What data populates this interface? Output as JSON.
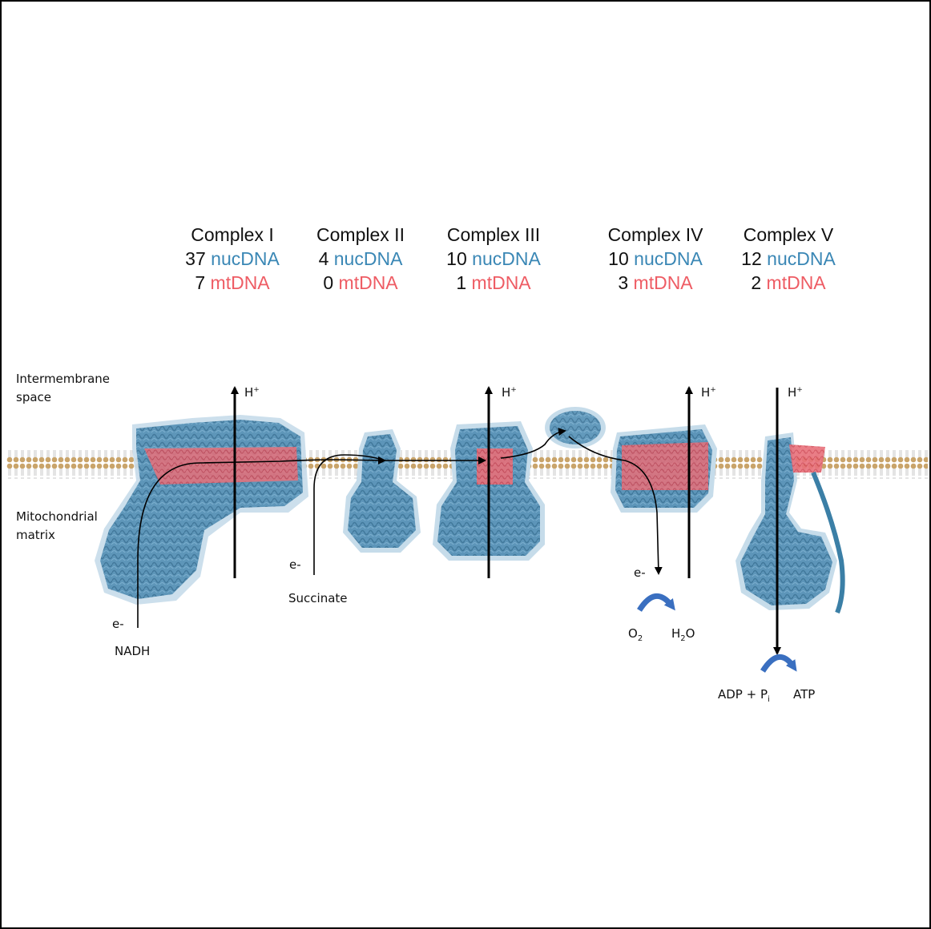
{
  "complexes": [
    {
      "name": "Complex I",
      "nuc_count": "37",
      "nuc_label": "nucDNA",
      "mt_count": "7",
      "mt_label": "mtDNA"
    },
    {
      "name": "Complex II",
      "nuc_count": "4",
      "nuc_label": "nucDNA",
      "mt_count": "0",
      "mt_label": "mtDNA"
    },
    {
      "name": "Complex III",
      "nuc_count": "10",
      "nuc_label": "nucDNA",
      "mt_count": "1",
      "mt_label": "mtDNA"
    },
    {
      "name": "Complex IV",
      "nuc_count": "10",
      "nuc_label": "nucDNA",
      "mt_count": "3",
      "mt_label": "mtDNA"
    },
    {
      "name": "Complex V",
      "nuc_count": "12",
      "nuc_label": "nucDNA",
      "mt_count": "2",
      "mt_label": "mtDNA"
    }
  ],
  "regions": {
    "intermembrane_line1": "Intermembrane",
    "intermembrane_line2": "space",
    "matrix_line1": "Mitochondrial",
    "matrix_line2": "matrix"
  },
  "labels": {
    "proton": "H",
    "proton_charge": "+",
    "electron": "e-",
    "nadh": "NADH",
    "succinate": "Succinate",
    "o2": "O",
    "o2_sub": "2",
    "h2o_h": "H",
    "h2o_sub": "2",
    "h2o_o": "O",
    "adp": "ADP + P",
    "adp_sub": "i",
    "atp": "ATP"
  },
  "colors": {
    "nuc": "#3a87b5",
    "mt": "#ee5c64",
    "protein": "#3b7fa6",
    "membrane_head": "#c9a46a",
    "reaction_arrow": "#3a6fc0"
  }
}
